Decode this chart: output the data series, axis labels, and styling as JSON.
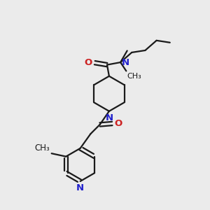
{
  "bg_color": "#ebebeb",
  "bond_color": "#1a1a1a",
  "N_color": "#2222cc",
  "O_color": "#cc2222",
  "line_width": 1.6,
  "font_size": 9.5,
  "figsize": [
    3.0,
    3.0
  ],
  "dpi": 100,
  "xlim": [
    0,
    10
  ],
  "ylim": [
    0,
    10
  ]
}
